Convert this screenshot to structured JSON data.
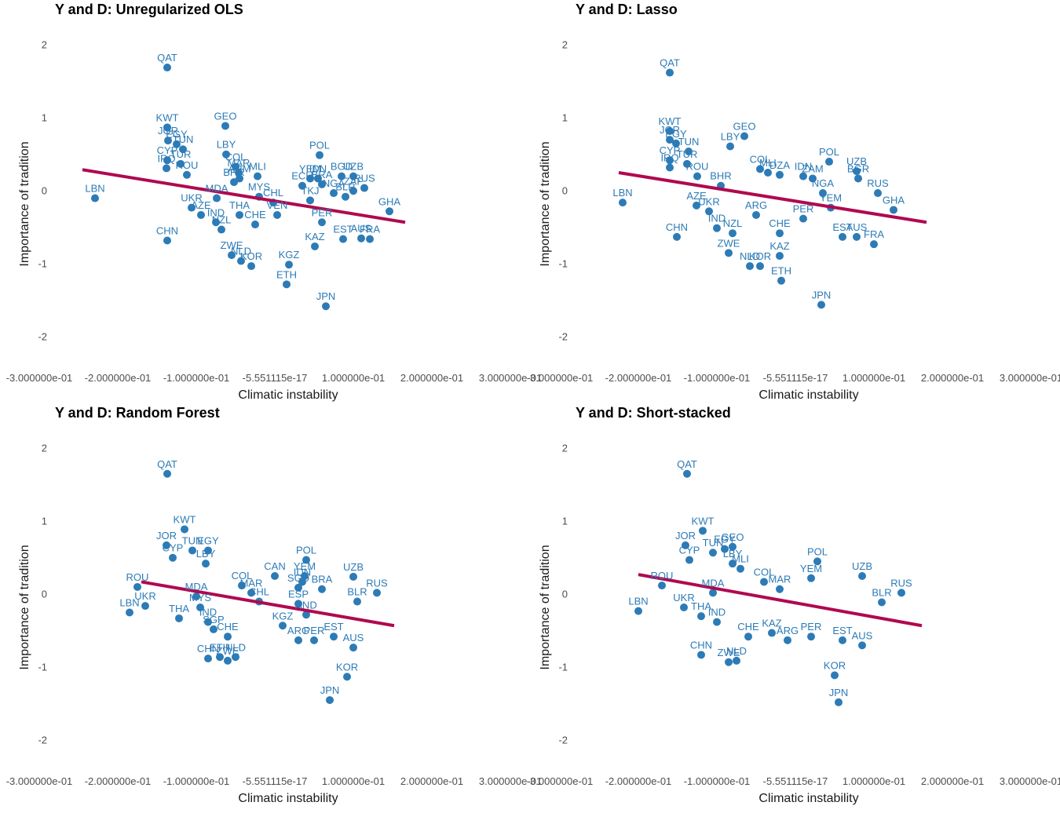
{
  "chart_data": [
    {
      "type": "scatter",
      "title": "Y and D: Unregularized OLS",
      "xlabel": "Climatic instability",
      "ylabel": "Importance of tradition",
      "xlim": [
        -0.3,
        0.3
      ],
      "ylim": [
        -2.2,
        2.1
      ],
      "x_ticks": [
        -0.3,
        -0.2,
        -0.1,
        0,
        0.1,
        0.2,
        0.3
      ],
      "x_tick_labels": [
        "-3.000000e-01",
        "-2.000000e-01",
        "-1.000000e-01",
        "-5.551115e-17",
        "1.000000e-01",
        "2.000000e-01",
        "3.000000e-01"
      ],
      "y_ticks": [
        -2,
        -1,
        0,
        1,
        2
      ],
      "y_tick_labels": [
        "-2",
        "-1",
        "0",
        "1",
        "2"
      ],
      "grid": false,
      "fit_line": {
        "x1": -0.245,
        "y1": 0.42,
        "x2": 0.166,
        "y2": -0.3
      },
      "points": [
        {
          "label": "QAT",
          "x": -0.137,
          "y": 1.82
        },
        {
          "label": "LBN",
          "x": -0.229,
          "y": 0.03
        },
        {
          "label": "CHN",
          "x": -0.137,
          "y": -0.55
        },
        {
          "label": "KWT",
          "x": -0.137,
          "y": 1.0
        },
        {
          "label": "JOR",
          "x": -0.136,
          "y": 0.82
        },
        {
          "label": "EGY",
          "x": -0.125,
          "y": 0.77
        },
        {
          "label": "TUN",
          "x": -0.117,
          "y": 0.7
        },
        {
          "label": "CYP",
          "x": -0.137,
          "y": 0.55
        },
        {
          "label": "TUR",
          "x": -0.12,
          "y": 0.5
        },
        {
          "label": "IRQ",
          "x": -0.138,
          "y": 0.44
        },
        {
          "label": "ROU",
          "x": -0.112,
          "y": 0.35
        },
        {
          "label": "GEO",
          "x": -0.063,
          "y": 1.02
        },
        {
          "label": "LBY",
          "x": -0.062,
          "y": 0.63
        },
        {
          "label": "COL",
          "x": -0.05,
          "y": 0.46
        },
        {
          "label": "MAR",
          "x": -0.046,
          "y": 0.38
        },
        {
          "label": "MLI",
          "x": -0.022,
          "y": 0.33
        },
        {
          "label": "ARM",
          "x": -0.045,
          "y": 0.3
        },
        {
          "label": "BHR",
          "x": -0.052,
          "y": 0.25
        },
        {
          "label": "MYS",
          "x": -0.02,
          "y": 0.05
        },
        {
          "label": "MDA",
          "x": -0.074,
          "y": 0.03
        },
        {
          "label": "UKR",
          "x": -0.106,
          "y": -0.1
        },
        {
          "label": "AZE",
          "x": -0.094,
          "y": -0.2
        },
        {
          "label": "IND",
          "x": -0.075,
          "y": -0.3
        },
        {
          "label": "NZL",
          "x": -0.068,
          "y": -0.4
        },
        {
          "label": "ZWE",
          "x": -0.055,
          "y": -0.75
        },
        {
          "label": "NLD",
          "x": -0.043,
          "y": -0.83
        },
        {
          "label": "KOR",
          "x": -0.03,
          "y": -0.9
        },
        {
          "label": "THA",
          "x": -0.045,
          "y": -0.2
        },
        {
          "label": "CHE",
          "x": -0.025,
          "y": -0.33
        },
        {
          "label": "CHL",
          "x": -0.002,
          "y": -0.03
        },
        {
          "label": "VEN",
          "x": 0.003,
          "y": -0.2
        },
        {
          "label": "KGZ",
          "x": 0.018,
          "y": -0.88
        },
        {
          "label": "ETH",
          "x": 0.015,
          "y": -1.15
        },
        {
          "label": "POL",
          "x": 0.057,
          "y": 0.62
        },
        {
          "label": "YEM",
          "x": 0.045,
          "y": 0.3
        },
        {
          "label": "IDN",
          "x": 0.055,
          "y": 0.3
        },
        {
          "label": "ECU",
          "x": 0.035,
          "y": 0.2
        },
        {
          "label": "BRA",
          "x": 0.06,
          "y": 0.22
        },
        {
          "label": "BGD",
          "x": 0.085,
          "y": 0.33
        },
        {
          "label": "UZB",
          "x": 0.1,
          "y": 0.33
        },
        {
          "label": "RUS",
          "x": 0.114,
          "y": 0.17
        },
        {
          "label": "NGA",
          "x": 0.075,
          "y": 0.1
        },
        {
          "label": "ZAF",
          "x": 0.1,
          "y": 0.13
        },
        {
          "label": "BLR",
          "x": 0.09,
          "y": 0.05
        },
        {
          "label": "TKJ",
          "x": 0.045,
          "y": 0.0
        },
        {
          "label": "PER",
          "x": 0.06,
          "y": -0.3
        },
        {
          "label": "KAZ",
          "x": 0.051,
          "y": -0.63
        },
        {
          "label": "JPN",
          "x": 0.065,
          "y": -1.45
        },
        {
          "label": "GHA",
          "x": 0.146,
          "y": -0.15
        },
        {
          "label": "EST",
          "x": 0.087,
          "y": -0.53
        },
        {
          "label": "AUS",
          "x": 0.11,
          "y": -0.52
        },
        {
          "label": "FRA",
          "x": 0.121,
          "y": -0.53
        }
      ]
    },
    {
      "type": "scatter",
      "title": "Y and D: Lasso",
      "xlabel": "Climatic instability",
      "ylabel": "Importance of tradition",
      "xlim": [
        -0.3,
        0.3
      ],
      "ylim": [
        -2.2,
        2.1
      ],
      "x_ticks": [
        -0.3,
        -0.2,
        -0.1,
        0,
        0.1,
        0.2,
        0.3
      ],
      "x_tick_labels": [
        "-3.000000e-01",
        "-2.000000e-01",
        "-1.000000e-01",
        "-5.551115e-17",
        "1.000000e-01",
        "2.000000e-01",
        "3.000000e-01"
      ],
      "y_ticks": [
        -2,
        -1,
        0,
        1,
        2
      ],
      "y_tick_labels": [
        "-2",
        "-1",
        "0",
        "1",
        "2"
      ],
      "grid": false,
      "fit_line": {
        "x1": -0.225,
        "y1": 0.38,
        "x2": 0.167,
        "y2": -0.3
      },
      "points": [
        {
          "label": "QAT",
          "x": -0.16,
          "y": 1.75
        },
        {
          "label": "LBN",
          "x": -0.22,
          "y": -0.03
        },
        {
          "label": "CHN",
          "x": -0.151,
          "y": -0.5
        },
        {
          "label": "KWT",
          "x": -0.16,
          "y": 0.95
        },
        {
          "label": "JOR",
          "x": -0.16,
          "y": 0.83
        },
        {
          "label": "EGY",
          "x": -0.152,
          "y": 0.78
        },
        {
          "label": "TUN",
          "x": -0.136,
          "y": 0.67
        },
        {
          "label": "CYP",
          "x": -0.16,
          "y": 0.55
        },
        {
          "label": "TUR",
          "x": -0.138,
          "y": 0.5
        },
        {
          "label": "IRQ",
          "x": -0.16,
          "y": 0.45
        },
        {
          "label": "ROU",
          "x": -0.125,
          "y": 0.33
        },
        {
          "label": "GEO",
          "x": -0.065,
          "y": 0.88
        },
        {
          "label": "LBY",
          "x": -0.083,
          "y": 0.74
        },
        {
          "label": "COL",
          "x": -0.045,
          "y": 0.43
        },
        {
          "label": "MLI",
          "x": -0.035,
          "y": 0.38
        },
        {
          "label": "DZA",
          "x": -0.02,
          "y": 0.35
        },
        {
          "label": "IDN",
          "x": 0.01,
          "y": 0.33
        },
        {
          "label": "ZAM",
          "x": 0.022,
          "y": 0.3
        },
        {
          "label": "BHR",
          "x": -0.095,
          "y": 0.2
        },
        {
          "label": "POL",
          "x": 0.043,
          "y": 0.53
        },
        {
          "label": "UZB",
          "x": 0.078,
          "y": 0.4
        },
        {
          "label": "BGR",
          "x": 0.08,
          "y": 0.3
        },
        {
          "label": "RUS",
          "x": 0.105,
          "y": 0.1
        },
        {
          "label": "GHA",
          "x": 0.125,
          "y": -0.13
        },
        {
          "label": "AZE",
          "x": -0.126,
          "y": -0.07
        },
        {
          "label": "UKR",
          "x": -0.11,
          "y": -0.15
        },
        {
          "label": "IND",
          "x": -0.1,
          "y": -0.38
        },
        {
          "label": "NZL",
          "x": -0.08,
          "y": -0.45
        },
        {
          "label": "ZWE",
          "x": -0.085,
          "y": -0.72
        },
        {
          "label": "NLD",
          "x": -0.058,
          "y": -0.9
        },
        {
          "label": "KOR",
          "x": -0.045,
          "y": -0.9
        },
        {
          "label": "CHE",
          "x": -0.02,
          "y": -0.45
        },
        {
          "label": "KAZ",
          "x": -0.02,
          "y": -0.76
        },
        {
          "label": "ETH",
          "x": -0.018,
          "y": -1.1
        },
        {
          "label": "PER",
          "x": 0.01,
          "y": -0.25
        },
        {
          "label": "ARG",
          "x": -0.05,
          "y": -0.2
        },
        {
          "label": "NGA",
          "x": 0.035,
          "y": 0.1
        },
        {
          "label": "YEM",
          "x": 0.045,
          "y": -0.1
        },
        {
          "label": "EST",
          "x": 0.06,
          "y": -0.5
        },
        {
          "label": "AUS",
          "x": 0.078,
          "y": -0.5
        },
        {
          "label": "FRA",
          "x": 0.1,
          "y": -0.6
        },
        {
          "label": "JPN",
          "x": 0.033,
          "y": -1.43
        }
      ]
    },
    {
      "type": "scatter",
      "title": "Y and D: Random Forest",
      "xlabel": "Climatic instability",
      "ylabel": "Importance of tradition",
      "xlim": [
        -0.3,
        0.3
      ],
      "ylim": [
        -2.2,
        2.1
      ],
      "x_ticks": [
        -0.3,
        -0.2,
        -0.1,
        0,
        0.1,
        0.2,
        0.3
      ],
      "x_tick_labels": [
        "-3.000000e-01",
        "-2.000000e-01",
        "-1.000000e-01",
        "-5.551115e-17",
        "1.000000e-01",
        "2.000000e-01",
        "3.000000e-01"
      ],
      "y_ticks": [
        -2,
        -1,
        0,
        1,
        2
      ],
      "y_tick_labels": [
        "-2",
        "-1",
        "0",
        "1",
        "2"
      ],
      "grid": false,
      "fit_line": {
        "x1": -0.17,
        "y1": 0.3,
        "x2": 0.152,
        "y2": -0.3
      },
      "points": [
        {
          "label": "QAT",
          "x": -0.137,
          "y": 1.78
        },
        {
          "label": "KWT",
          "x": -0.115,
          "y": 1.02
        },
        {
          "label": "JOR",
          "x": -0.138,
          "y": 0.8
        },
        {
          "label": "CYP",
          "x": -0.13,
          "y": 0.63
        },
        {
          "label": "TUN",
          "x": -0.105,
          "y": 0.73
        },
        {
          "label": "EGY",
          "x": -0.085,
          "y": 0.73
        },
        {
          "label": "LBY",
          "x": -0.088,
          "y": 0.55
        },
        {
          "label": "ROU",
          "x": -0.175,
          "y": 0.23
        },
        {
          "label": "LBN",
          "x": -0.185,
          "y": -0.12
        },
        {
          "label": "UKR",
          "x": -0.165,
          "y": -0.03
        },
        {
          "label": "THA",
          "x": -0.122,
          "y": -0.2
        },
        {
          "label": "MDA",
          "x": -0.1,
          "y": 0.1
        },
        {
          "label": "MYS",
          "x": -0.095,
          "y": -0.05
        },
        {
          "label": "IND",
          "x": -0.085,
          "y": -0.25
        },
        {
          "label": "CHN",
          "x": -0.085,
          "y": -0.75
        },
        {
          "label": "ETH",
          "x": -0.07,
          "y": -0.73
        },
        {
          "label": "NLD",
          "x": -0.05,
          "y": -0.73
        },
        {
          "label": "ZWE",
          "x": -0.06,
          "y": -0.78
        },
        {
          "label": "CHE",
          "x": -0.06,
          "y": -0.45
        },
        {
          "label": "SGP",
          "x": -0.078,
          "y": -0.35
        },
        {
          "label": "COL",
          "x": -0.042,
          "y": 0.25
        },
        {
          "label": "MAR",
          "x": -0.03,
          "y": 0.15
        },
        {
          "label": "CAN",
          "x": 0.0,
          "y": 0.38
        },
        {
          "label": "CHL",
          "x": -0.02,
          "y": 0.03
        },
        {
          "label": "POL",
          "x": 0.04,
          "y": 0.6
        },
        {
          "label": "YEM",
          "x": 0.038,
          "y": 0.38
        },
        {
          "label": "IDN",
          "x": 0.035,
          "y": 0.3
        },
        {
          "label": "UZB",
          "x": 0.1,
          "y": 0.37
        },
        {
          "label": "BRA",
          "x": 0.06,
          "y": 0.2
        },
        {
          "label": "SGD",
          "x": 0.03,
          "y": 0.22
        },
        {
          "label": "ESP",
          "x": 0.03,
          "y": 0.0
        },
        {
          "label": "RUS",
          "x": 0.13,
          "y": 0.15
        },
        {
          "label": "BLR",
          "x": 0.105,
          "y": 0.03
        },
        {
          "label": "AND",
          "x": 0.04,
          "y": -0.15
        },
        {
          "label": "KGZ",
          "x": 0.01,
          "y": -0.3
        },
        {
          "label": "ARG",
          "x": 0.03,
          "y": -0.5
        },
        {
          "label": "PER",
          "x": 0.05,
          "y": -0.5
        },
        {
          "label": "EST",
          "x": 0.075,
          "y": -0.45
        },
        {
          "label": "AUS",
          "x": 0.1,
          "y": -0.6
        },
        {
          "label": "KOR",
          "x": 0.092,
          "y": -1.0
        },
        {
          "label": "JPN",
          "x": 0.07,
          "y": -1.32
        }
      ]
    },
    {
      "type": "scatter",
      "title": "Y and D: Short-stacked",
      "xlabel": "Climatic instability",
      "ylabel": "Importance of tradition",
      "xlim": [
        -0.3,
        0.3
      ],
      "ylim": [
        -2.2,
        2.1
      ],
      "x_ticks": [
        -0.3,
        -0.2,
        -0.1,
        0,
        0.1,
        0.2,
        0.3
      ],
      "x_tick_labels": [
        "-3.000000e-01",
        "-2.000000e-01",
        "-1.000000e-01",
        "-5.551115e-17",
        "1.000000e-01",
        "2.000000e-01",
        "3.000000e-01"
      ],
      "y_ticks": [
        -2,
        -1,
        0,
        1,
        2
      ],
      "y_tick_labels": [
        "-2",
        "-1",
        "0",
        "1",
        "2"
      ],
      "grid": false,
      "fit_line": {
        "x1": -0.2,
        "y1": 0.4,
        "x2": 0.161,
        "y2": -0.3
      },
      "points": [
        {
          "label": "QAT",
          "x": -0.138,
          "y": 1.78
        },
        {
          "label": "KWT",
          "x": -0.118,
          "y": 1.0
        },
        {
          "label": "JOR",
          "x": -0.14,
          "y": 0.8
        },
        {
          "label": "CYP",
          "x": -0.135,
          "y": 0.6
        },
        {
          "label": "TUN",
          "x": -0.105,
          "y": 0.7
        },
        {
          "label": "EGY",
          "x": -0.09,
          "y": 0.75
        },
        {
          "label": "GEO",
          "x": -0.08,
          "y": 0.78
        },
        {
          "label": "LBY",
          "x": -0.08,
          "y": 0.55
        },
        {
          "label": "MLI",
          "x": -0.07,
          "y": 0.48
        },
        {
          "label": "ROU",
          "x": -0.17,
          "y": 0.25
        },
        {
          "label": "LBN",
          "x": -0.2,
          "y": -0.1
        },
        {
          "label": "UKR",
          "x": -0.142,
          "y": -0.05
        },
        {
          "label": "THA",
          "x": -0.12,
          "y": -0.17
        },
        {
          "label": "IND",
          "x": -0.1,
          "y": -0.25
        },
        {
          "label": "MDA",
          "x": -0.105,
          "y": 0.15
        },
        {
          "label": "CHN",
          "x": -0.12,
          "y": -0.7
        },
        {
          "label": "ZWE",
          "x": -0.085,
          "y": -0.8
        },
        {
          "label": "NLD",
          "x": -0.075,
          "y": -0.78
        },
        {
          "label": "CHE",
          "x": -0.06,
          "y": -0.45
        },
        {
          "label": "COL",
          "x": -0.04,
          "y": 0.3
        },
        {
          "label": "MAR",
          "x": -0.02,
          "y": 0.2
        },
        {
          "label": "POL",
          "x": 0.028,
          "y": 0.58
        },
        {
          "label": "YEM",
          "x": 0.02,
          "y": 0.35
        },
        {
          "label": "UZB",
          "x": 0.085,
          "y": 0.38
        },
        {
          "label": "RUS",
          "x": 0.135,
          "y": 0.15
        },
        {
          "label": "BLR",
          "x": 0.11,
          "y": 0.02
        },
        {
          "label": "KAZ",
          "x": -0.03,
          "y": -0.4
        },
        {
          "label": "ARG",
          "x": -0.01,
          "y": -0.5
        },
        {
          "label": "PER",
          "x": 0.02,
          "y": -0.45
        },
        {
          "label": "EST",
          "x": 0.06,
          "y": -0.5
        },
        {
          "label": "AUS",
          "x": 0.085,
          "y": -0.57
        },
        {
          "label": "KOR",
          "x": 0.05,
          "y": -0.98
        },
        {
          "label": "JPN",
          "x": 0.055,
          "y": -1.35
        }
      ]
    }
  ]
}
